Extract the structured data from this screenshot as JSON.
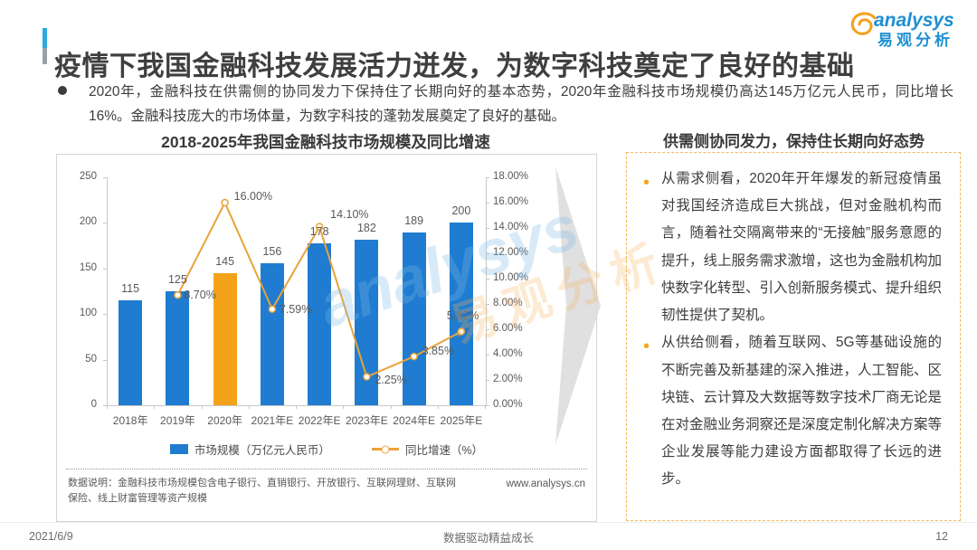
{
  "header": {
    "title": "疫情下我国金融科技发展活力迸发，为数字科技奠定了良好的基础",
    "accent_top": "#2EA9E0",
    "accent_bottom": "#9BA1A6",
    "logo": {
      "brand": "analysys",
      "brand_cn": "易观分析",
      "brand_color": "#1d8fd1",
      "swirl_color": "#F6A01D"
    }
  },
  "intro": {
    "bullet": "2020年，金融科技在供需侧的协同发力下保持住了长期向好的基本态势，2020年金融科技市场规模仍高达145万亿元人民币，同比增长16%。金融科技庞大的市场体量，为数字科技的蓬勃发展奠定了良好的基础。"
  },
  "chart": {
    "title": "2018-2025年我国金融科技市场规模及同比增速",
    "legend": [
      {
        "label": "市场规模（万亿元人民币）",
        "type": "bar"
      },
      {
        "label": "同比增速（%）",
        "type": "line"
      }
    ],
    "source_note": "数据说明：金融科技市场规模包含电子银行、直销银行、开放银行、互联网理财、互联网保险、线上财富管理等资产规模",
    "website": "www.analysys.cn"
  },
  "chart_data": {
    "type": "bar+line",
    "title": "2018-2025年我国金融科技市场规模及同比增速",
    "categories": [
      "2018年",
      "2019年",
      "2020年",
      "2021年E",
      "2022年E",
      "2023年E",
      "2024年E",
      "2025年E"
    ],
    "series": [
      {
        "name": "市场规模（万亿元人民币）",
        "type": "bar",
        "values": [
          115,
          125,
          145,
          156,
          178,
          182,
          189,
          200
        ],
        "value_labels": [
          "115",
          "125",
          "145",
          "156",
          "178",
          "182",
          "189",
          "200"
        ]
      },
      {
        "name": "同比增速（%）",
        "type": "line",
        "values": [
          null,
          8.7,
          16.0,
          7.59,
          14.1,
          2.25,
          3.85,
          5.82
        ],
        "value_labels": [
          null,
          "8.70%",
          "16.00%",
          "7.59%",
          "14.10%",
          "2.25%",
          "3.85%",
          "5.82%"
        ]
      }
    ],
    "left_axis": {
      "min": 0,
      "max": 250,
      "step": 50
    },
    "right_axis": {
      "min": 0,
      "max": 18,
      "step": 2,
      "format": "0.00%"
    },
    "highlight_index": 2,
    "bar_color": "#1F7CD0",
    "bar_highlight_color": "#F5A21B",
    "line_color": "#E9A23B",
    "legend_position": "bottom",
    "grid": false
  },
  "panel": {
    "title": "供需侧协同发力，保持住长期向好态势",
    "border_color": "#F3B85C",
    "bullet_color": "#F5A623",
    "bullets": [
      "从需求侧看，2020年开年爆发的新冠疫情虽对我国经济造成巨大挑战，但对金融机构而言，随着社交隔离带来的“无接触”服务意愿的提升，线上服务需求激增，这也为金融机构加快数字化转型、引入创新服务模式、提升组织韧性提供了契机。",
      "从供给侧看，随着互联网、5G等基础设施的不断完善及新基建的深入推进，人工智能、区块链、云计算及大数据等数字技术厂商无论是在对金融业务洞察还是深度定制化解决方案等企业发展等能力建设方面都取得了长远的进步。"
    ]
  },
  "watermark": {
    "line1": "analysys",
    "line2": "易观分析"
  },
  "footer": {
    "date": "2021/6/9",
    "slogan": "数据驱动精益成长",
    "page": "12"
  }
}
